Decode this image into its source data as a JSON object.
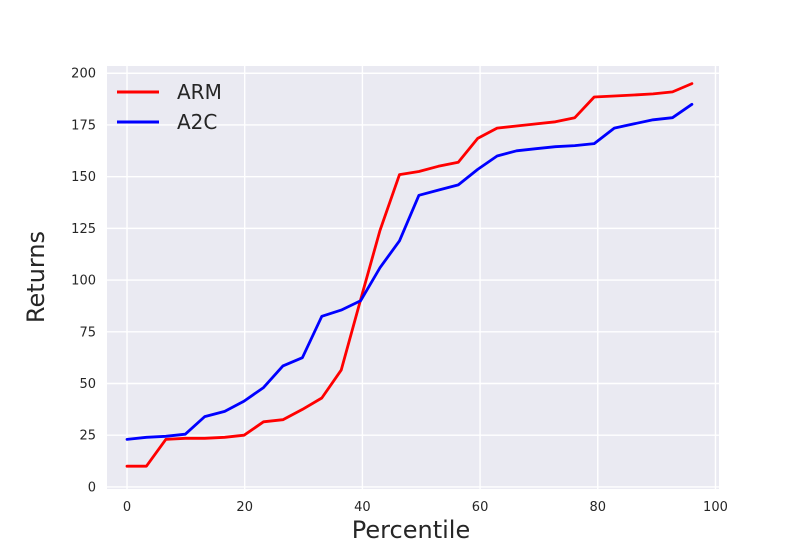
{
  "chart_data": {
    "type": "line",
    "title": "",
    "xlabel": "Percentile",
    "ylabel": "Returns",
    "x_ticks": [
      0,
      20,
      40,
      60,
      80,
      100
    ],
    "y_ticks": [
      0,
      25,
      50,
      75,
      100,
      125,
      150,
      175,
      200
    ],
    "xlim": [
      -3.4,
      100.6
    ],
    "ylim": [
      -1,
      203.5
    ],
    "grid": true,
    "plot_bg": "#eaeaf2",
    "grid_color": "#ffffff",
    "text_color": "#262626",
    "legend": {
      "position": "upper-left",
      "entries": [
        "ARM",
        "A2C"
      ]
    },
    "x": [
      0,
      3.3,
      6.6,
      9.9,
      13.2,
      16.6,
      19.9,
      23.2,
      26.5,
      29.8,
      33.1,
      36.4,
      39.7,
      43.0,
      46.3,
      49.6,
      52.9,
      56.3,
      59.6,
      62.9,
      66.2,
      69.5,
      72.8,
      76.1,
      79.4,
      82.8,
      86.1,
      89.4,
      92.7,
      96.0
    ],
    "series": [
      {
        "name": "ARM",
        "color": "#ff0000",
        "values": [
          10,
          10,
          23,
          23.5,
          23.5,
          24,
          25,
          31.5,
          32.5,
          37.5,
          43,
          56.5,
          90.5,
          124,
          151,
          152.5,
          155,
          157,
          168.5,
          173.5,
          174.5,
          175.5,
          176.5,
          178.5,
          188.5,
          189,
          189.5,
          190,
          191,
          195
        ]
      },
      {
        "name": "A2C",
        "color": "#0000ff",
        "values": [
          23,
          24,
          24.5,
          25.5,
          34,
          36.5,
          41.5,
          48,
          58.5,
          62.5,
          82.5,
          85.5,
          90,
          106,
          119,
          141,
          143.5,
          146,
          153.5,
          160,
          162.5,
          163.5,
          164.5,
          165,
          166,
          173.5,
          175.5,
          177.5,
          178.5,
          185
        ]
      }
    ]
  }
}
